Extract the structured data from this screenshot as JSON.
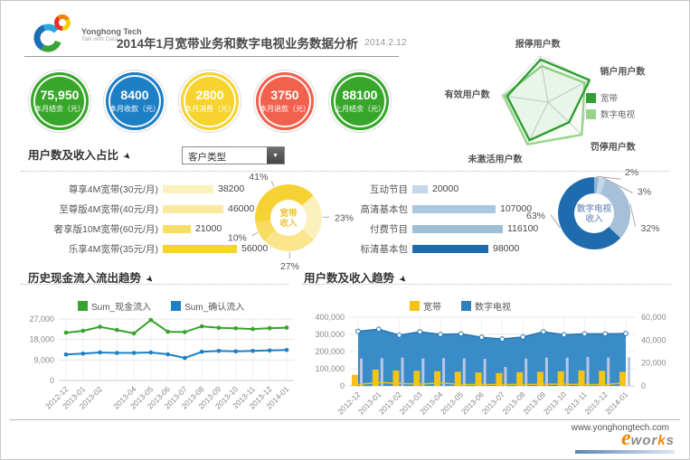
{
  "header": {
    "logo_name": "Yonghong Tech",
    "logo_tagline": "Talk with Data",
    "title": "2014年1月宽带业务和数字电视业务数据分析",
    "date": "2014.2.12"
  },
  "kpis": [
    {
      "value": "75,950",
      "label": "本月结余（元）",
      "color": "#38a62b"
    },
    {
      "value": "8400",
      "label": "本月收款（元）",
      "color": "#1d7fc4"
    },
    {
      "value": "2800",
      "label": "本月消费（元）",
      "color": "#f6d32d"
    },
    {
      "value": "3750",
      "label": "本月退款（元）",
      "color": "#f2604e"
    },
    {
      "value": "88100",
      "label": "上月结余（元）",
      "color": "#38a62b"
    }
  ],
  "ratio_section": {
    "title": "用户数及收入占比",
    "filter": {
      "value": "客户类型"
    }
  },
  "cash_section": {
    "title": "历史现金流入流出趋势"
  },
  "trend_section": {
    "title": "用户数及收入趋势"
  },
  "footer": {
    "url": "www.yonghongtech.com",
    "logo_e": "e",
    "logo_w1": "wor",
    "logo_k": "k",
    "logo_s": "s"
  },
  "chart_data": [
    {
      "id": "user_status_radar",
      "type": "radar",
      "categories": [
        "报停用户数",
        "销户用户数",
        "罚停用户数",
        "未激活用户数",
        "有效用户数"
      ],
      "series": [
        {
          "name": "宽带",
          "color": "#2f9e33",
          "values": [
            0.92,
            1.0,
            0.62,
            0.9,
            0.88
          ]
        },
        {
          "name": "数字电视",
          "color": "#97d489",
          "values": [
            0.78,
            0.88,
            1.0,
            1.0,
            0.95
          ]
        }
      ],
      "scale": [
        0,
        1
      ],
      "legend_position": "right"
    },
    {
      "id": "broadband_package_bars",
      "type": "bar",
      "orientation": "horizontal",
      "categories": [
        "尊享4M宽带(30元/月)",
        "至尊版4M宽带(40元/月)",
        "奢享版10M宽带(60元/月)",
        "乐享4M宽带(35元/月)"
      ],
      "values": [
        38200,
        46000,
        21000,
        56000
      ],
      "bar_colors": [
        "#fcf0bd",
        "#fbe99e",
        "#f9dd64",
        "#f7d234"
      ],
      "max": 56000
    },
    {
      "id": "broadband_income_donut",
      "type": "pie",
      "center_lines": [
        "宽带",
        "收入"
      ],
      "center_color": "#e9c53e",
      "start_angle": -98,
      "slices": [
        {
          "label": "41%",
          "value": 41,
          "color": "#f7d234"
        },
        {
          "label": "23%",
          "value": 23,
          "color": "#fcf0bd"
        },
        {
          "label": "27%",
          "value": 27,
          "color": "#fae58c"
        },
        {
          "label": "10%",
          "value": 10,
          "color": "#f8dc5f"
        }
      ]
    },
    {
      "id": "tv_package_bars",
      "type": "bar",
      "orientation": "horizontal",
      "categories": [
        "互动节目",
        "高清基本包",
        "付费节目",
        "标清基本包"
      ],
      "values": [
        20000,
        107000,
        116100,
        98000
      ],
      "bar_colors": [
        "#c3d6ea",
        "#aac8e2",
        "#9bc0d8",
        "#1e6cad"
      ],
      "max": 116100
    },
    {
      "id": "tv_income_donut",
      "type": "pie",
      "center_lines": [
        "数字电视",
        "收入"
      ],
      "center_color": "#8aa8c8",
      "start_angle": 0,
      "slices": [
        {
          "label": "2%",
          "value": 2,
          "color": "#8fb3d6",
          "label_at": 38
        },
        {
          "label": "3%",
          "value": 3,
          "color": "#c3d6ea",
          "label_at": 62
        },
        {
          "label": "32%",
          "value": 32,
          "color": "#a6c0da",
          "label_at": 108
        },
        {
          "label": "63%",
          "value": 63,
          "color": "#1e6cad",
          "label_at": 268
        }
      ]
    },
    {
      "id": "cash_flow_lines",
      "type": "line",
      "x": [
        "2012-12",
        "2013-01",
        "2013-02",
        "",
        "2013-04",
        "2013-05",
        "2013-06",
        "2013-07",
        "2013-08",
        "2013-09",
        "2013-10",
        "2013-11",
        "2013-12",
        "2014-01"
      ],
      "yticks": [
        "27,000",
        "18,000",
        "9,000",
        "0"
      ],
      "ylim": [
        0,
        27000
      ],
      "series": [
        {
          "name": "Sum_现金流入",
          "color": "#36a32c",
          "values": [
            21000,
            21800,
            23600,
            22200,
            20700,
            26600,
            21400,
            21300,
            23800,
            23100,
            22900,
            22600,
            23000,
            23200
          ]
        },
        {
          "name": "Sum_确认流入",
          "color": "#1d7fc4",
          "values": [
            11400,
            11800,
            12300,
            12100,
            12100,
            12300,
            11500,
            9900,
            12600,
            13000,
            12800,
            13000,
            13200,
            13400
          ]
        }
      ]
    },
    {
      "id": "user_income_trend_combo",
      "type": "combo",
      "x": [
        "2012-12",
        "2013-01",
        "2013-02",
        "2013-03",
        "2013-04",
        "2013-05",
        "2013-06",
        "2013-07",
        "2013-08",
        "2013-09",
        "2013-10",
        "2013-11",
        "2013-12",
        "2014-01"
      ],
      "left_yticks": [
        "400,000",
        "300,000",
        "200,000",
        "100,000",
        "0"
      ],
      "right_yticks": [
        "60,000",
        "40,000",
        "20,000",
        "0"
      ],
      "left_ylim": [
        0,
        400000
      ],
      "legend": [
        {
          "label": "宽带",
          "color": "#f3c317"
        },
        {
          "label": "数字电视",
          "color": "#2e7fbe"
        }
      ],
      "series": [
        {
          "legend": "数字电视",
          "render": "area",
          "color": "#3a8cc8",
          "values": [
            318000,
            330000,
            295000,
            315000,
            300000,
            303000,
            283000,
            273000,
            285000,
            315000,
            298000,
            303000,
            303000,
            305000
          ]
        },
        {
          "legend": null,
          "render": "thin-bar",
          "color": "#b9c6e4",
          "values": [
            160000,
            162000,
            165000,
            160000,
            162000,
            160000,
            158000,
            110000,
            160000,
            165000,
            165000,
            168000,
            165000,
            168000
          ]
        },
        {
          "legend": "宽带",
          "render": "bar",
          "color": "#f3c317",
          "values": [
            65000,
            95000,
            90000,
            88000,
            85000,
            82000,
            78000,
            75000,
            80000,
            82000,
            85000,
            90000,
            88000,
            82000
          ]
        },
        {
          "legend": null,
          "render": "line",
          "color": "#f0c419",
          "values": [
            8000,
            20000,
            15000,
            10000,
            18000,
            8000,
            8000,
            8000,
            8000,
            10000,
            10000,
            8000,
            8000,
            18000
          ]
        }
      ]
    }
  ]
}
